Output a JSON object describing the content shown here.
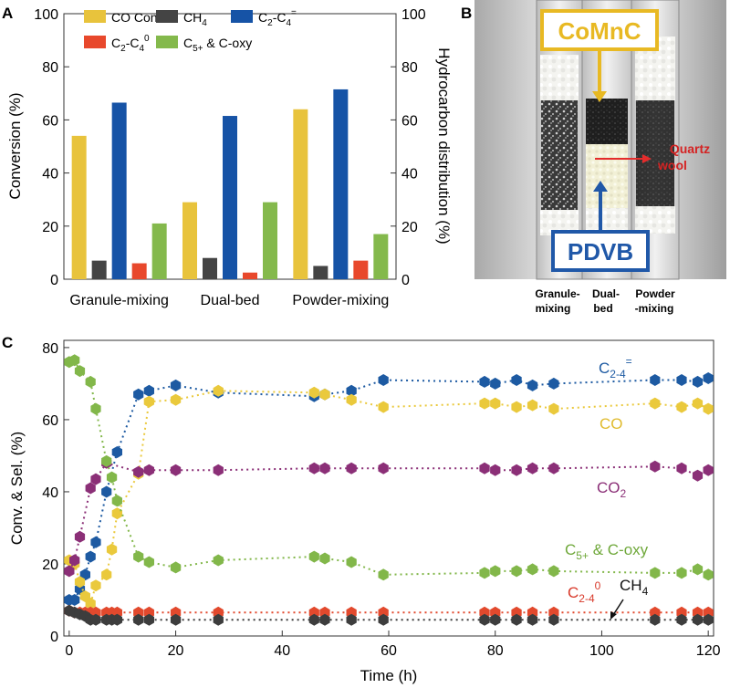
{
  "panels": {
    "a": "A",
    "b": "B",
    "c": "C"
  },
  "chart_data": [
    {
      "type": "bar",
      "panel": "A",
      "categories": [
        "Granule-mixing",
        "Dual-bed",
        "Powder-mixing"
      ],
      "series": [
        {
          "name": "CO Conv.",
          "axis": "left",
          "color": "#e8c33c",
          "values": [
            54,
            29,
            64
          ]
        },
        {
          "name": "CH4",
          "axis": "right",
          "color": "#444444",
          "values": [
            7,
            8,
            5
          ]
        },
        {
          "name": "C2-C4=",
          "axis": "right",
          "color": "#1653a6",
          "values": [
            66.5,
            61.5,
            71.5
          ]
        },
        {
          "name": "C2-C40",
          "axis": "right",
          "color": "#e8482c",
          "values": [
            6,
            2.5,
            7
          ]
        },
        {
          "name": "C5+ & C-oxy",
          "axis": "right",
          "color": "#84b94c",
          "values": [
            21,
            29,
            17
          ]
        }
      ],
      "legend": [
        {
          "base": "CO Conv.",
          "sub": "",
          "sup": "",
          "tail": ""
        },
        {
          "base": "CH",
          "sub": "4",
          "sup": "",
          "tail": ""
        },
        {
          "base": "C",
          "sub": "2",
          "sup": "",
          "tail": "-C",
          "sub2": "4",
          "sup2": "="
        },
        {
          "base": "C",
          "sub": "2",
          "sup": "",
          "tail": "-C",
          "sub2": "4",
          "sup2": "0"
        },
        {
          "base": "C",
          "sub": "5+",
          "sup": "",
          "tail": " & C-oxy"
        }
      ],
      "legend_position": "top-left",
      "ylabel": "Conversion (%)",
      "y2label": "Hydrocarbon distribution (%)",
      "ylim": [
        0,
        100
      ],
      "yticks": [
        0,
        20,
        40,
        60,
        80,
        100
      ]
    },
    {
      "type": "line",
      "panel": "C",
      "xlabel": "Time (h)",
      "ylabel": "Conv. & Sel. (%)",
      "xlim": [
        -1,
        121
      ],
      "ylim": [
        0,
        82
      ],
      "xticks": [
        0,
        20,
        40,
        60,
        80,
        100,
        120
      ],
      "yticks": [
        0,
        20,
        40,
        60,
        80
      ],
      "series": [
        {
          "name": "C2-4=",
          "color": "#1d5aa2",
          "x": [
            0,
            1,
            2,
            3,
            4,
            5,
            7,
            9,
            13,
            15,
            20,
            28,
            46,
            48,
            53,
            59,
            78,
            80,
            84,
            87,
            91,
            110,
            115,
            118,
            120
          ],
          "y": [
            10,
            10,
            13,
            17,
            22,
            26,
            40,
            51,
            67,
            68,
            69.5,
            67.5,
            66.5,
            67,
            68,
            71,
            70.5,
            70,
            71,
            69.5,
            70,
            71,
            71,
            70.5,
            71.5
          ]
        },
        {
          "name": "CO",
          "color": "#eac93c",
          "x": [
            0,
            1,
            2,
            3,
            4,
            5,
            7,
            8,
            9,
            13,
            15,
            20,
            28,
            46,
            48,
            53,
            59,
            78,
            80,
            84,
            87,
            91,
            110,
            115,
            118,
            120
          ],
          "y": [
            21,
            20,
            15,
            11,
            9,
            14,
            17,
            24,
            34,
            45,
            65,
            65.5,
            68,
            67.5,
            67,
            65.5,
            63.5,
            64.5,
            64.5,
            63.5,
            64,
            63,
            64.5,
            63.5,
            64.5,
            63
          ]
        },
        {
          "name": "CO2",
          "color": "#8b2f77",
          "x": [
            0,
            1,
            2,
            4,
            5,
            7,
            13,
            15,
            20,
            28,
            46,
            48,
            53,
            59,
            78,
            80,
            84,
            87,
            91,
            110,
            115,
            118,
            120
          ],
          "y": [
            18,
            21,
            27.5,
            41,
            43.5,
            48,
            45.5,
            46,
            46,
            46,
            46.5,
            46.5,
            46.5,
            46.5,
            46.5,
            46,
            46,
            46.5,
            46.5,
            47,
            46.5,
            44.5,
            46
          ]
        },
        {
          "name": "C5+ & C-oxy",
          "color": "#82b74a",
          "x": [
            0,
            1,
            2,
            4,
            5,
            7,
            8,
            9,
            13,
            15,
            20,
            28,
            46,
            48,
            53,
            59,
            78,
            80,
            84,
            87,
            91,
            110,
            115,
            118,
            120
          ],
          "y": [
            76,
            76.5,
            73.5,
            70.5,
            63,
            48.5,
            44,
            37.5,
            22,
            20.5,
            19,
            21,
            22,
            21.5,
            20.5,
            17,
            17.5,
            18,
            18,
            18.5,
            18,
            17.5,
            17.5,
            18.5,
            17
          ]
        },
        {
          "name": "C2-40",
          "color": "#e2492d",
          "x": [
            0,
            1,
            2,
            3,
            4,
            5,
            7,
            8,
            9,
            13,
            15,
            20,
            28,
            46,
            48,
            53,
            59,
            78,
            80,
            84,
            87,
            91,
            110,
            115,
            118,
            120
          ],
          "y": [
            7,
            6.5,
            6.5,
            6.5,
            6.5,
            6.5,
            6.5,
            6.5,
            6.5,
            6.5,
            6.5,
            6.5,
            6.5,
            6.5,
            6.5,
            6.5,
            6.5,
            6.5,
            6.5,
            6.5,
            6.5,
            6.5,
            6.5,
            6.5,
            6.5,
            6.5
          ]
        },
        {
          "name": "CH4",
          "color": "#3d3d3d",
          "x": [
            0,
            1,
            2,
            3,
            4,
            5,
            7,
            8,
            9,
            13,
            15,
            20,
            28,
            46,
            48,
            53,
            59,
            78,
            80,
            84,
            87,
            91,
            110,
            115,
            118,
            120
          ],
          "y": [
            7,
            6.5,
            6,
            5.5,
            4.5,
            4.5,
            4.5,
            4.5,
            4.5,
            4.5,
            4.5,
            4.5,
            4.5,
            4.5,
            4.5,
            4.5,
            4.5,
            4.5,
            4.5,
            4.5,
            4.5,
            4.5,
            4.5,
            4.5,
            4.5,
            4.5
          ]
        }
      ],
      "annotations": {
        "c24eq": {
          "base": "C",
          "sub": "2-4",
          "sup": "="
        },
        "co": "CO",
        "co2": {
          "base": "CO",
          "sub": "2"
        },
        "c5": {
          "base": "C",
          "sub": "5+",
          "tail": " & C-oxy"
        },
        "c240": {
          "base": "C",
          "sub": "2-4",
          "sup": "0"
        },
        "ch4": {
          "base": "CH",
          "sub": "4"
        }
      }
    }
  ],
  "photo": {
    "top_label": "CoMnC",
    "bottom_label": "PDVB",
    "quartz_label_1": "Quartz",
    "quartz_label_2": "wool",
    "captions": [
      {
        "line1": "Granule-",
        "line2": "mixing"
      },
      {
        "line1": "Dual-",
        "line2": "bed"
      },
      {
        "line1": "Powder",
        "line2": "-mixing"
      }
    ]
  }
}
